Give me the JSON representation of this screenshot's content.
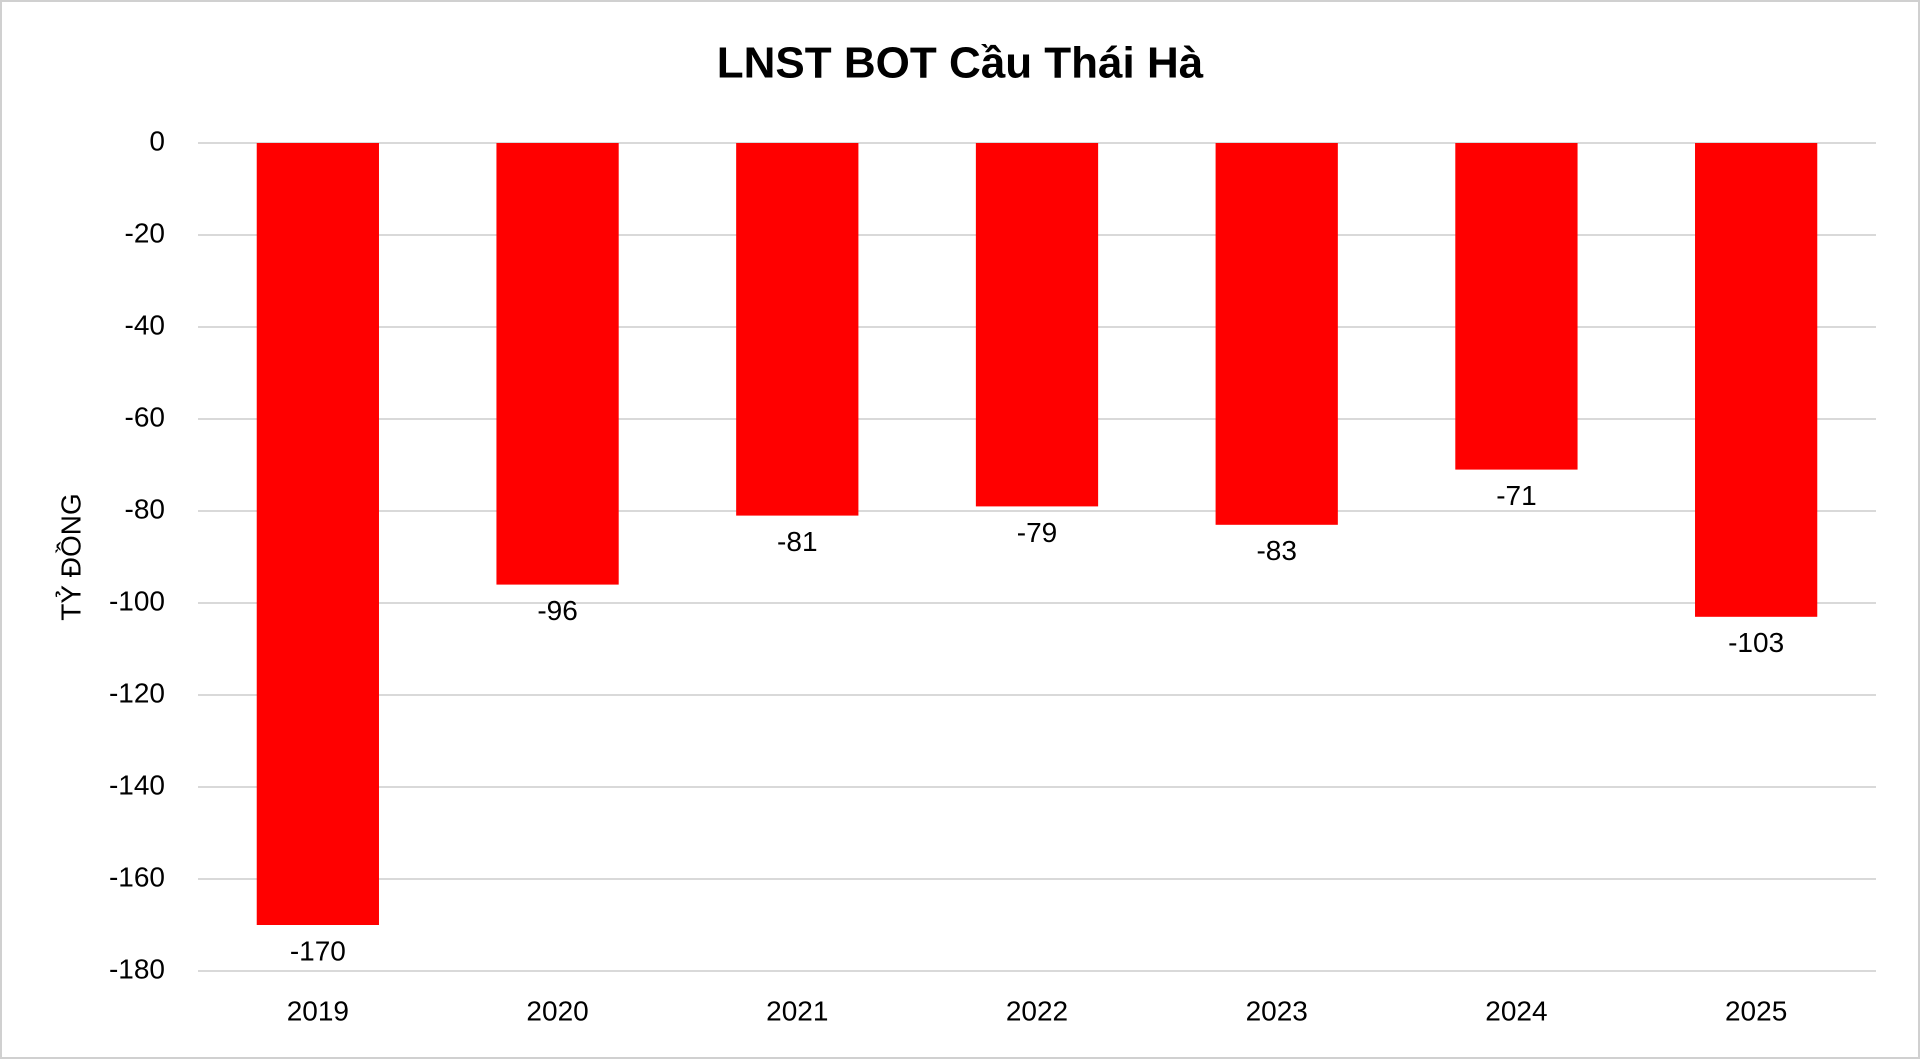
{
  "chart_data": {
    "type": "bar",
    "title": "LNST BOT Cầu Thái Hà",
    "y_label": "TỶ ĐỒNG",
    "categories": [
      "2019",
      "2020",
      "2021",
      "2022",
      "2023",
      "2024",
      "2025"
    ],
    "values": [
      -170,
      -96,
      -81,
      -79,
      -83,
      -71,
      -103
    ],
    "color": "#ff0000",
    "ylim": [
      -180,
      0
    ],
    "yticks": [
      0,
      -20,
      -40,
      -60,
      -80,
      -100,
      -120,
      -140,
      -160,
      -180
    ],
    "grid": true
  }
}
